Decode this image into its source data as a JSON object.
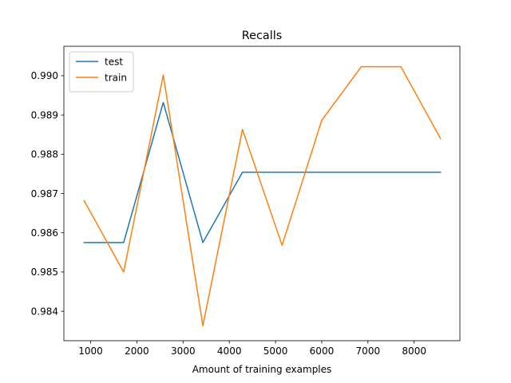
{
  "chart_data": {
    "type": "line",
    "title": "Recalls",
    "xlabel": "Amount of training examples",
    "ylabel": "",
    "xlim": [
      420,
      8990
    ],
    "ylim": [
      0.98325,
      0.99075
    ],
    "xticks": [
      1000,
      2000,
      3000,
      4000,
      5000,
      6000,
      7000,
      8000
    ],
    "yticks": [
      0.984,
      0.985,
      0.986,
      0.987,
      0.988,
      0.989,
      0.99
    ],
    "ytick_labels": [
      "0.984",
      "0.985",
      "0.986",
      "0.987",
      "0.988",
      "0.989",
      "0.990"
    ],
    "grid": false,
    "legend_position": "top-left",
    "x": [
      857,
      1714,
      2571,
      3428,
      4285,
      5142,
      5999,
      6856,
      7713,
      8570
    ],
    "series": [
      {
        "name": "test",
        "color": "#1f77b4",
        "values": [
          0.98575,
          0.98575,
          0.98932,
          0.98575,
          0.98754,
          0.98754,
          0.98754,
          0.98754,
          0.98754,
          0.98754
        ]
      },
      {
        "name": "train",
        "color": "#ff7f0e",
        "values": [
          0.98682,
          0.985,
          0.99002,
          0.98363,
          0.98863,
          0.98568,
          0.98886,
          0.99023,
          0.99023,
          0.9884
        ]
      }
    ]
  }
}
